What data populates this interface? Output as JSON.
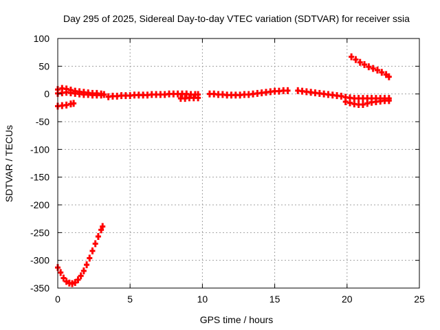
{
  "chart_data": {
    "type": "scatter",
    "title": "Day 295 of 2025, Sidereal Day-to-day VTEC variation (SDTVAR) for receiver ssia",
    "xlabel": "GPS time / hours",
    "ylabel": "SDTVAR / TECUs",
    "xlim": [
      0,
      25
    ],
    "ylim": [
      -350,
      100
    ],
    "xticks": [
      0,
      5,
      10,
      15,
      20,
      25
    ],
    "yticks": [
      100,
      50,
      0,
      -50,
      -100,
      -150,
      -200,
      -250,
      -300,
      -350
    ],
    "grid": true,
    "marker_color": "#ff0000",
    "series": [
      {
        "points": [
          [
            0.0,
            8
          ],
          [
            0.3,
            10
          ],
          [
            0.6,
            9
          ],
          [
            0.9,
            7
          ],
          [
            1.2,
            5
          ],
          [
            1.5,
            4
          ],
          [
            1.8,
            3
          ],
          [
            2.1,
            2
          ],
          [
            2.4,
            1
          ],
          [
            2.7,
            1
          ],
          [
            3.0,
            0
          ],
          [
            3.2,
            -1
          ],
          [
            0.0,
            1
          ],
          [
            0.3,
            2
          ],
          [
            0.6,
            3
          ],
          [
            0.9,
            2
          ],
          [
            1.2,
            1
          ],
          [
            1.5,
            0
          ],
          [
            1.8,
            -1
          ],
          [
            2.1,
            -1
          ],
          [
            2.4,
            -2
          ],
          [
            2.7,
            -2
          ],
          [
            3.0,
            -2
          ],
          [
            0.0,
            -22
          ],
          [
            0.3,
            -21
          ],
          [
            0.6,
            -20
          ],
          [
            0.9,
            -18
          ],
          [
            1.1,
            -17
          ],
          [
            3.5,
            -5
          ],
          [
            3.8,
            -4
          ],
          [
            4.1,
            -4
          ],
          [
            4.4,
            -3
          ],
          [
            4.7,
            -3
          ],
          [
            5.0,
            -3
          ],
          [
            5.3,
            -2
          ],
          [
            5.6,
            -2
          ],
          [
            5.9,
            -2
          ],
          [
            6.2,
            -2
          ],
          [
            6.5,
            -1
          ],
          [
            6.8,
            -1
          ],
          [
            7.1,
            -1
          ],
          [
            7.4,
            -1
          ],
          [
            7.7,
            0
          ],
          [
            8.0,
            0
          ],
          [
            8.3,
            0
          ],
          [
            8.6,
            0
          ],
          [
            8.9,
            0
          ],
          [
            9.2,
            -1
          ],
          [
            9.5,
            -1
          ],
          [
            9.7,
            -1
          ],
          [
            8.5,
            -8
          ],
          [
            8.8,
            -8
          ],
          [
            9.1,
            -7
          ],
          [
            9.4,
            -7
          ],
          [
            9.7,
            -7
          ],
          [
            10.5,
            0
          ],
          [
            10.8,
            0
          ],
          [
            11.1,
            -1
          ],
          [
            11.4,
            -1
          ],
          [
            11.7,
            -2
          ],
          [
            12.0,
            -2
          ],
          [
            12.3,
            -2
          ],
          [
            12.6,
            -2
          ],
          [
            12.9,
            -1
          ],
          [
            13.2,
            -1
          ],
          [
            13.5,
            0
          ],
          [
            13.8,
            1
          ],
          [
            14.1,
            2
          ],
          [
            14.4,
            3
          ],
          [
            14.7,
            4
          ],
          [
            15.0,
            5
          ],
          [
            15.3,
            5
          ],
          [
            15.6,
            6
          ],
          [
            15.9,
            6
          ],
          [
            16.6,
            6
          ],
          [
            16.9,
            5
          ],
          [
            17.2,
            4
          ],
          [
            17.5,
            3
          ],
          [
            17.8,
            2
          ],
          [
            18.1,
            1
          ],
          [
            18.4,
            0
          ],
          [
            18.7,
            -1
          ],
          [
            19.0,
            -2
          ],
          [
            19.3,
            -3
          ],
          [
            19.6,
            -4
          ],
          [
            19.9,
            -6
          ],
          [
            20.2,
            -7
          ],
          [
            20.5,
            -8
          ],
          [
            20.8,
            -8
          ],
          [
            21.1,
            -8
          ],
          [
            21.4,
            -8
          ],
          [
            21.7,
            -8
          ],
          [
            22.0,
            -8
          ],
          [
            22.3,
            -8
          ],
          [
            22.6,
            -8
          ],
          [
            22.9,
            -8
          ],
          [
            19.9,
            -14
          ],
          [
            20.2,
            -16
          ],
          [
            20.5,
            -18
          ],
          [
            20.8,
            -19
          ],
          [
            21.1,
            -19
          ],
          [
            21.4,
            -17
          ],
          [
            21.7,
            -15
          ],
          [
            22.0,
            -14
          ],
          [
            22.3,
            -13
          ],
          [
            22.6,
            -12
          ],
          [
            22.9,
            -12
          ],
          [
            20.3,
            67
          ],
          [
            20.6,
            62
          ],
          [
            20.9,
            57
          ],
          [
            21.2,
            53
          ],
          [
            21.5,
            49
          ],
          [
            21.8,
            46
          ],
          [
            22.1,
            43
          ],
          [
            22.4,
            39
          ],
          [
            22.7,
            35
          ],
          [
            22.9,
            31
          ],
          [
            0.0,
            -313
          ],
          [
            0.2,
            -322
          ],
          [
            0.4,
            -332
          ],
          [
            0.6,
            -338
          ],
          [
            0.8,
            -341
          ],
          [
            1.0,
            -342
          ],
          [
            1.2,
            -340
          ],
          [
            1.4,
            -335
          ],
          [
            1.6,
            -328
          ],
          [
            1.8,
            -319
          ],
          [
            2.0,
            -308
          ],
          [
            2.2,
            -296
          ],
          [
            2.4,
            -283
          ],
          [
            2.6,
            -270
          ],
          [
            2.8,
            -257
          ],
          [
            3.0,
            -245
          ],
          [
            3.1,
            -239
          ]
        ]
      }
    ]
  }
}
